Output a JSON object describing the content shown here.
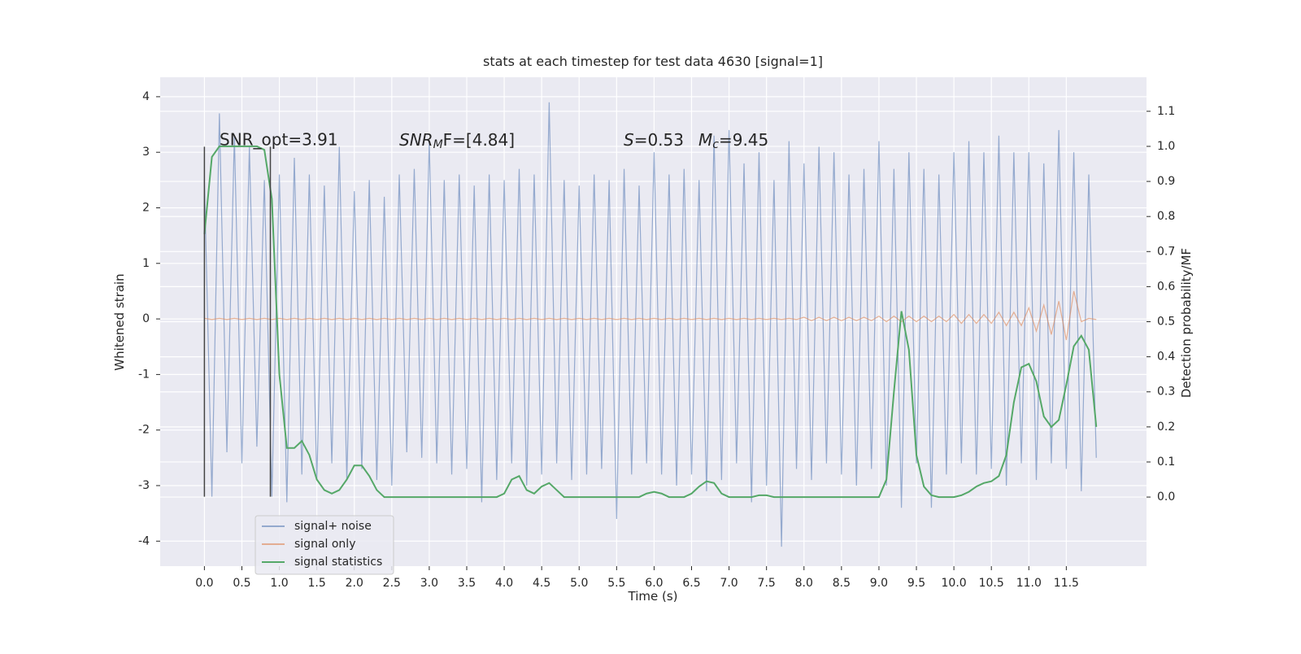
{
  "chart_data": {
    "type": "line",
    "title": "stats at each timestep for test data 4630 [signal=1]",
    "xlabel": "Time (s)",
    "ylabel": "Whitened strain",
    "y2label": "Detection probability/MF",
    "annotations": [
      {
        "text": "SNR_opt=3.91"
      },
      {
        "parts": [
          "SNR",
          "M",
          "F=[4.84]"
        ]
      },
      {
        "parts": [
          "S",
          "=0.53"
        ]
      },
      {
        "parts": [
          "M",
          "c",
          "=9.45"
        ]
      }
    ],
    "xlim": [
      -0.59,
      12.57
    ],
    "ylim": [
      -4.45,
      4.35
    ],
    "y2lim": [
      -0.197,
      1.197
    ],
    "xticks": [
      {
        "value": 0,
        "label": "0.0"
      },
      0.5,
      {
        "value": 1,
        "label": "1.0"
      },
      1.5,
      {
        "value": 2,
        "label": "2.0"
      },
      2.5,
      {
        "value": 3,
        "label": "3.0"
      },
      3.5,
      {
        "value": 4,
        "label": "4.0"
      },
      4.5,
      {
        "value": 5,
        "label": "5.0"
      },
      5.5,
      {
        "value": 6,
        "label": "6.0"
      },
      6.5,
      {
        "value": 7,
        "label": "7.0"
      },
      7.5,
      {
        "value": 8,
        "label": "8.0"
      },
      8.5,
      {
        "value": 9,
        "label": "9.0"
      },
      9.5,
      {
        "value": 10,
        "label": "10.0"
      },
      10.5,
      {
        "value": 11,
        "label": "11.0"
      },
      11.5
    ],
    "yticks": [
      -4,
      -3,
      -2,
      -1,
      0,
      1,
      2,
      3,
      4
    ],
    "y2ticks": [
      {
        "value": 0,
        "label": "0.0"
      },
      0.1,
      0.2,
      0.3,
      0.4,
      0.5,
      0.6,
      0.7,
      0.8,
      0.9,
      {
        "value": 1,
        "label": "1.0"
      },
      1.1
    ],
    "grid": true,
    "legend": "lower left",
    "vlines": {
      "x": [
        0,
        0.88
      ],
      "ymin": -3.2,
      "ymax": 3.1,
      "color": "#444444"
    },
    "x": [
      0,
      0.1,
      0.2,
      0.3,
      0.4,
      0.5,
      0.6,
      0.7,
      0.8,
      0.9,
      1,
      1.1,
      1.2,
      1.3,
      1.4,
      1.5,
      1.6,
      1.7,
      1.8,
      1.9,
      2,
      2.1,
      2.2,
      2.3,
      2.4,
      2.5,
      2.6,
      2.7,
      2.8,
      2.9,
      3,
      3.1,
      3.2,
      3.3,
      3.4,
      3.5,
      3.6,
      3.7,
      3.8,
      3.9,
      4,
      4.1,
      4.2,
      4.3,
      4.4,
      4.5,
      4.6,
      4.7,
      4.8,
      4.9,
      5,
      5.1,
      5.2,
      5.3,
      5.4,
      5.5,
      5.6,
      5.7,
      5.8,
      5.9,
      6,
      6.1,
      6.2,
      6.3,
      6.4,
      6.5,
      6.6,
      6.7,
      6.8,
      6.9,
      7,
      7.1,
      7.2,
      7.3,
      7.4,
      7.5,
      7.6,
      7.7,
      7.8,
      7.9,
      8,
      8.1,
      8.2,
      8.3,
      8.4,
      8.5,
      8.6,
      8.7,
      8.8,
      8.9,
      9,
      9.1,
      9.2,
      9.3,
      9.4,
      9.5,
      9.6,
      9.7,
      9.8,
      9.9,
      10,
      10.1,
      10.2,
      10.3,
      10.4,
      10.5,
      10.6,
      10.7,
      10.8,
      10.9,
      11,
      11.1,
      11.2,
      11.3,
      11.4,
      11.5,
      11.6,
      11.7,
      11.8,
      11.9
    ],
    "series": [
      {
        "name": "signal+ noise",
        "color": "#4c72b0",
        "opacity": 0.55,
        "values": [
          2.5,
          -3.2,
          3.7,
          -2.4,
          3.3,
          -2.6,
          3.1,
          -2.3,
          2.5,
          -3.2,
          2.6,
          -3.3,
          2.9,
          -2.8,
          2.6,
          -2.9,
          2.4,
          -2.6,
          3.1,
          -2.9,
          2.3,
          -2.7,
          2.5,
          -2.9,
          2.2,
          -3.0,
          2.6,
          -2.4,
          2.7,
          -2.5,
          3.2,
          -2.6,
          2.5,
          -2.8,
          2.6,
          -2.7,
          2.4,
          -3.3,
          2.6,
          -2.9,
          2.5,
          -2.6,
          2.7,
          -3.0,
          2.6,
          -2.8,
          3.9,
          -2.6,
          2.5,
          -2.9,
          2.4,
          -2.8,
          2.6,
          -2.7,
          2.5,
          -3.6,
          2.7,
          -2.8,
          2.4,
          -2.6,
          3.0,
          -2.8,
          2.6,
          -3.0,
          2.7,
          -2.8,
          2.5,
          -3.1,
          3.3,
          -2.9,
          3.4,
          -2.6,
          2.8,
          -3.3,
          3.0,
          -3.0,
          2.5,
          -4.1,
          3.2,
          -2.7,
          2.8,
          -2.9,
          3.1,
          -2.6,
          3.0,
          -2.8,
          2.6,
          -3.0,
          2.7,
          -2.7,
          3.2,
          -3.0,
          2.7,
          -3.4,
          3.0,
          -2.6,
          2.7,
          -3.4,
          2.6,
          -2.8,
          3.0,
          -2.6,
          3.2,
          -2.8,
          3.0,
          -2.7,
          3.3,
          -3.0,
          3.0,
          -2.6,
          3.0,
          -2.9,
          2.8,
          -2.6,
          3.4,
          -2.7,
          3.0,
          -3.1,
          2.6,
          -2.5
        ]
      },
      {
        "name": "signal only",
        "color": "#dd8452",
        "opacity": 0.6,
        "values": [
          0.01,
          -0.01,
          0.01,
          -0.01,
          0.01,
          -0.01,
          0.01,
          -0.01,
          0.01,
          -0.01,
          0.01,
          -0.01,
          0.01,
          -0.01,
          0.01,
          -0.01,
          0.01,
          -0.01,
          0.01,
          -0.01,
          0.01,
          -0.01,
          0.01,
          -0.01,
          0.01,
          -0.01,
          0.01,
          -0.01,
          0.01,
          -0.01,
          0.01,
          -0.01,
          0.01,
          -0.01,
          0.01,
          -0.01,
          0.01,
          -0.01,
          0.01,
          -0.01,
          0.01,
          -0.01,
          0.01,
          -0.01,
          0.01,
          -0.01,
          0.01,
          -0.01,
          0.01,
          -0.01,
          0.01,
          -0.01,
          0.01,
          -0.01,
          0.01,
          -0.01,
          0.01,
          -0.01,
          0.01,
          -0.01,
          0.01,
          -0.01,
          0.01,
          -0.01,
          0.01,
          -0.01,
          0.01,
          -0.01,
          0.01,
          -0.01,
          0.01,
          -0.01,
          0.01,
          -0.01,
          0.01,
          -0.01,
          0.01,
          -0.01,
          0.01,
          -0.01,
          0.03,
          -0.03,
          0.03,
          -0.03,
          0.03,
          -0.03,
          0.03,
          -0.03,
          0.03,
          -0.03,
          0.05,
          -0.05,
          0.05,
          -0.05,
          0.05,
          -0.05,
          0.05,
          -0.05,
          0.05,
          -0.05,
          0.08,
          -0.08,
          0.08,
          -0.08,
          0.08,
          -0.08,
          0.12,
          -0.12,
          0.12,
          -0.12,
          0.2,
          -0.22,
          0.25,
          -0.28,
          0.32,
          -0.38,
          0.5,
          -0.05,
          0.01,
          -0.01
        ]
      },
      {
        "name": "signal statistics",
        "color": "#55a868",
        "opacity": 1,
        "axis": "y2",
        "values": [
          0.75,
          0.97,
          1.0,
          1.0,
          1.0,
          1.0,
          1.0,
          1.0,
          0.99,
          0.85,
          0.35,
          0.14,
          0.14,
          0.16,
          0.12,
          0.05,
          0.02,
          0.01,
          0.02,
          0.05,
          0.09,
          0.09,
          0.06,
          0.02,
          0,
          0,
          0,
          0,
          0,
          0,
          0,
          0,
          0,
          0,
          0,
          0,
          0,
          0,
          0,
          0,
          0.01,
          0.05,
          0.06,
          0.02,
          0.01,
          0.03,
          0.04,
          0.02,
          0,
          0,
          0,
          0,
          0,
          0,
          0,
          0,
          0,
          0,
          0,
          0.01,
          0.015,
          0.01,
          0,
          0,
          0,
          0.01,
          0.03,
          0.045,
          0.04,
          0.01,
          0,
          0,
          0,
          0,
          0.005,
          0.005,
          0,
          0,
          0,
          0,
          0,
          0,
          0,
          0,
          0,
          0,
          0,
          0,
          0,
          0,
          0,
          0.05,
          0.3,
          0.53,
          0.42,
          0.12,
          0.03,
          0.005,
          0,
          0,
          0,
          0.005,
          0.015,
          0.03,
          0.04,
          0.045,
          0.06,
          0.12,
          0.27,
          0.37,
          0.38,
          0.33,
          0.23,
          0.2,
          0.22,
          0.32,
          0.43,
          0.46,
          0.42,
          0.2
        ]
      }
    ]
  }
}
